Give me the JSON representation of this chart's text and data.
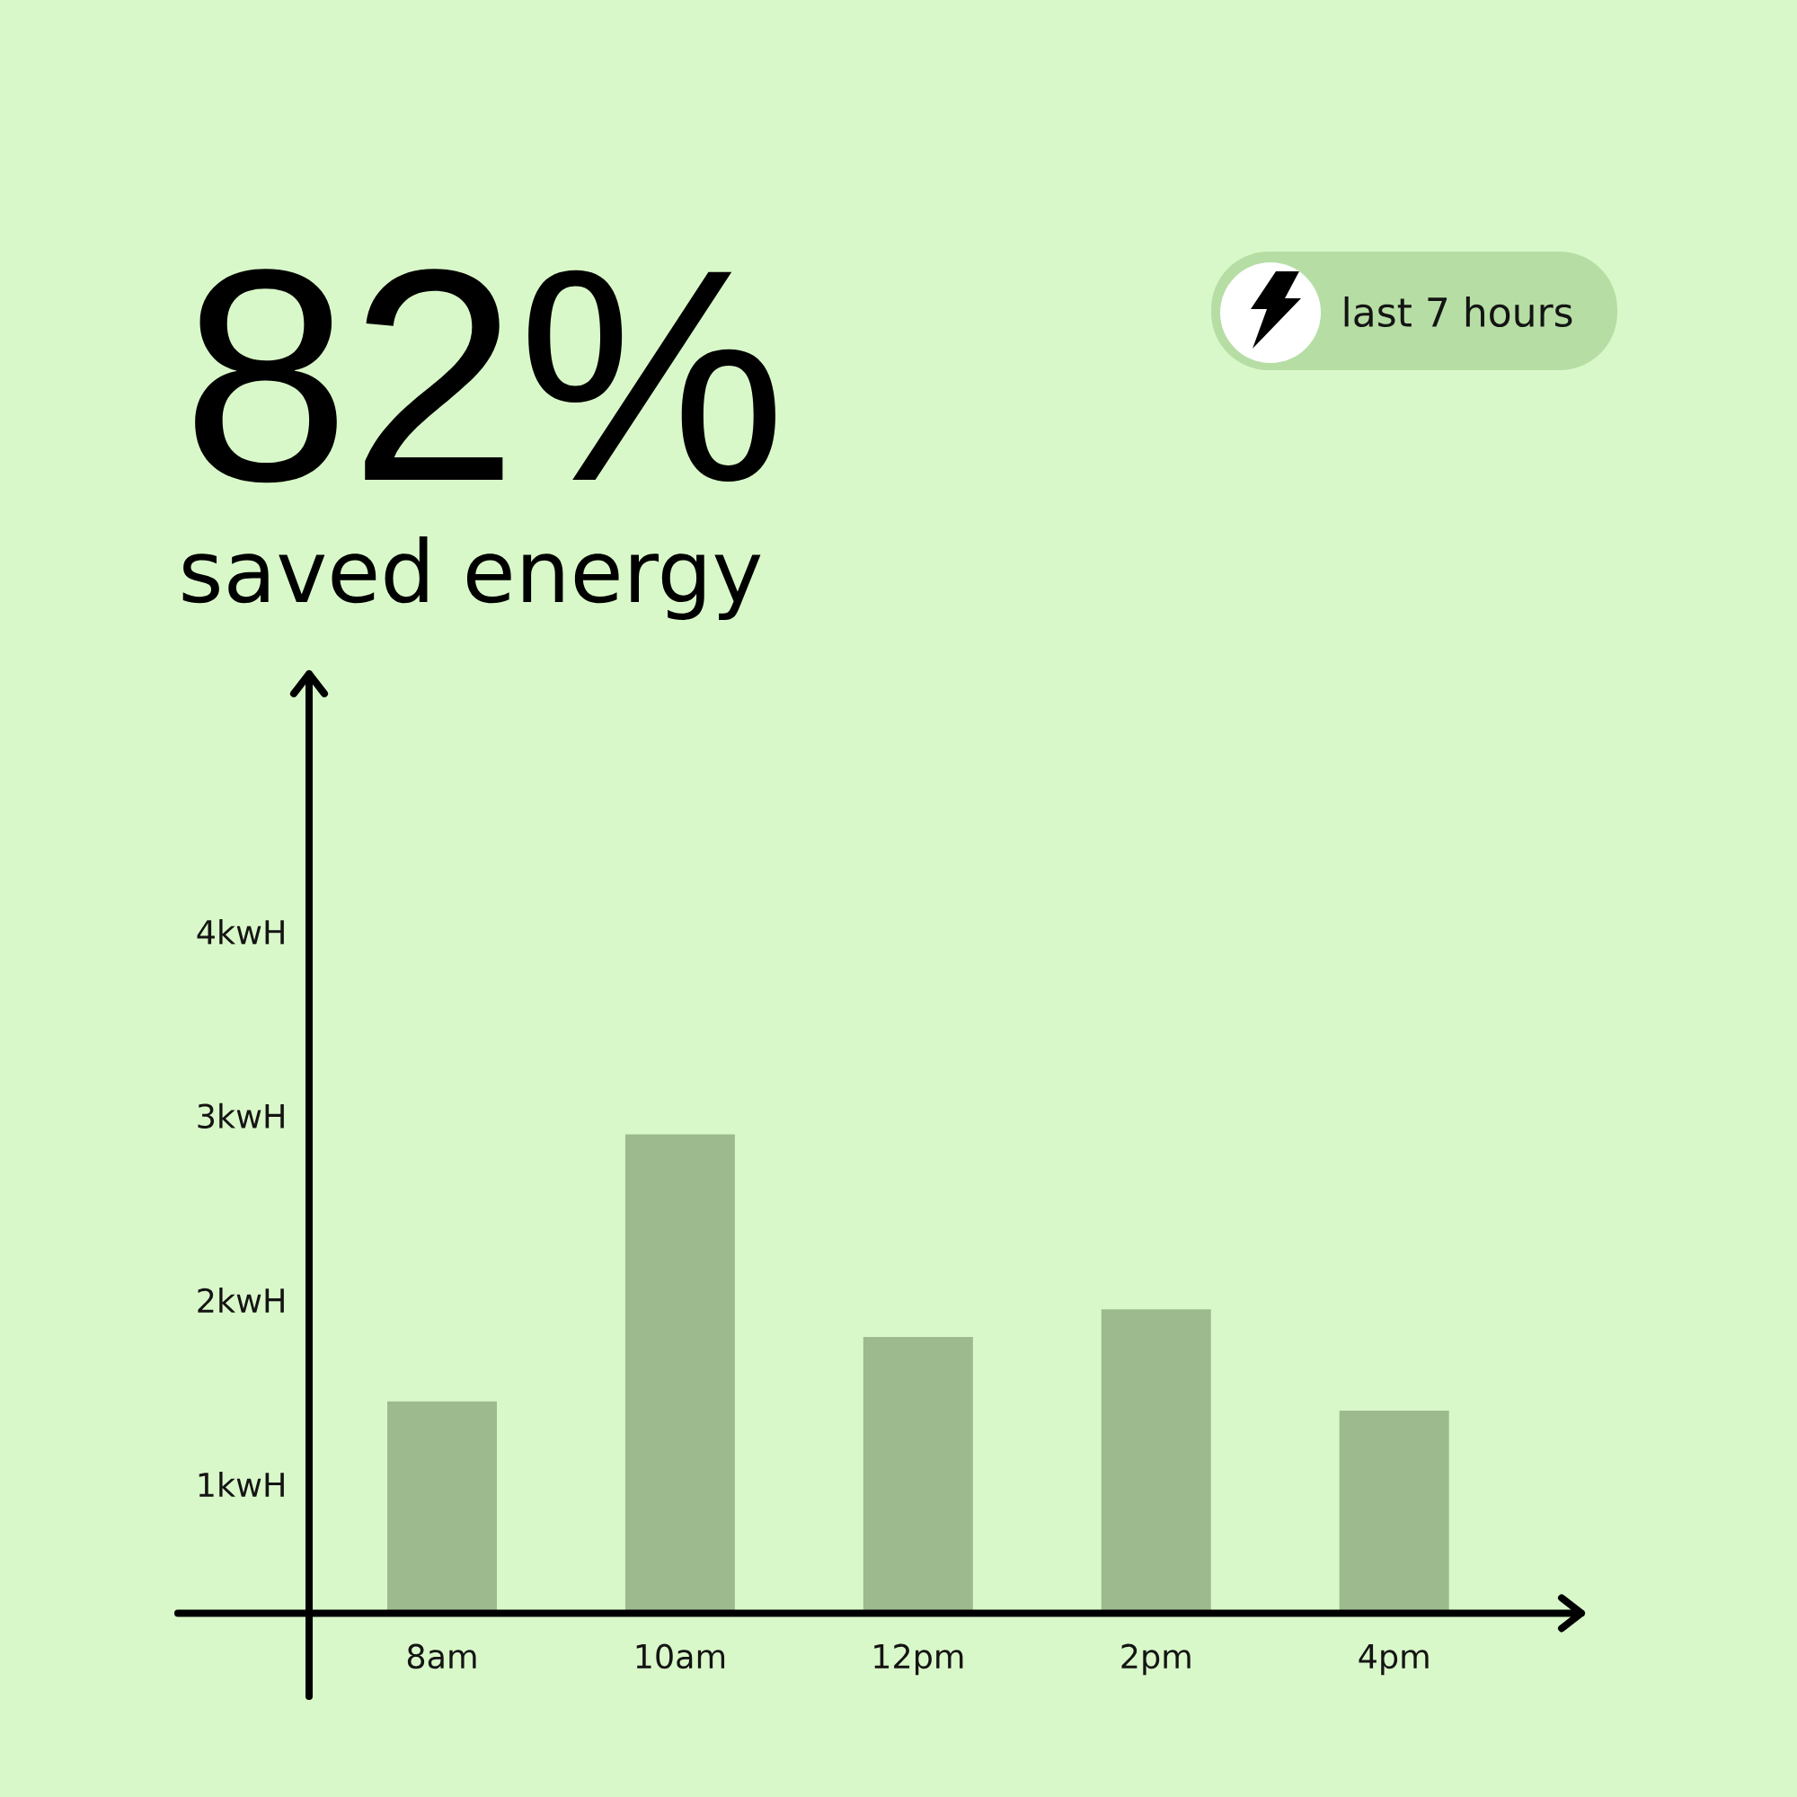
{
  "chart_data": {
    "type": "bar",
    "title": "82%",
    "subtitle": "saved energy",
    "annotations": [
      "last 7 hours"
    ],
    "categories": [
      "8am",
      "10am",
      "12pm",
      "2pm",
      "4pm"
    ],
    "values": [
      1.45,
      2.9,
      1.8,
      1.95,
      1.4
    ],
    "color": "#9cba8e",
    "ylim": [
      0.3,
      5.4
    ],
    "yticks": [
      {
        "value": 1,
        "label": "1kwH"
      },
      {
        "value": 2,
        "label": "2kwH"
      },
      {
        "value": 3,
        "label": "3kwH"
      },
      {
        "value": 4,
        "label": "4kwH"
      }
    ]
  }
}
